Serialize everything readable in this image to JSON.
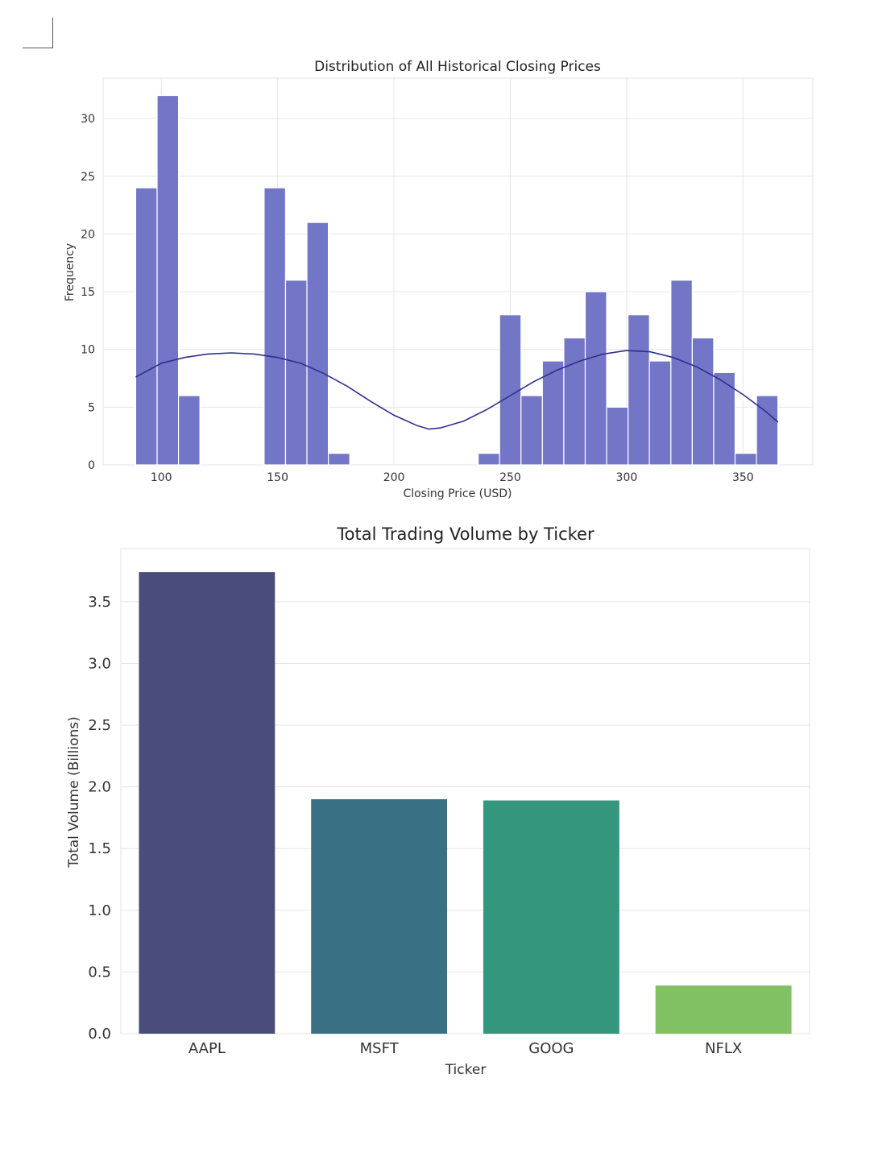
{
  "chart_data": [
    {
      "type": "bar",
      "subtype": "histogram",
      "title": "Distribution of All Historical Closing Prices",
      "xlabel": "Closing Price (USD)",
      "ylabel": "Frequency",
      "xlim": [
        75,
        380
      ],
      "ylim": [
        0,
        33.5
      ],
      "xticks": [
        "100",
        "150",
        "200",
        "250",
        "300",
        "350"
      ],
      "xtick_values": [
        100,
        150,
        200,
        250,
        300,
        350
      ],
      "yticks": [
        "0",
        "5",
        "10",
        "15",
        "20",
        "25",
        "30"
      ],
      "ytick_values": [
        0,
        5,
        10,
        15,
        20,
        25,
        30
      ],
      "grid": true,
      "bar_color": "#7375c6",
      "kde_color": "#2e2f8f",
      "bins": [
        {
          "x0": 89.0,
          "x1": 98.2,
          "count": 24
        },
        {
          "x0": 98.2,
          "x1": 107.4,
          "count": 32
        },
        {
          "x0": 107.4,
          "x1": 116.6,
          "count": 6
        },
        {
          "x0": 116.6,
          "x1": 125.8,
          "count": 0
        },
        {
          "x0": 125.8,
          "x1": 135.0,
          "count": 0
        },
        {
          "x0": 135.0,
          "x1": 144.2,
          "count": 0
        },
        {
          "x0": 144.2,
          "x1": 153.4,
          "count": 24
        },
        {
          "x0": 153.4,
          "x1": 162.6,
          "count": 16
        },
        {
          "x0": 162.6,
          "x1": 171.8,
          "count": 21
        },
        {
          "x0": 171.8,
          "x1": 181.0,
          "count": 1
        },
        {
          "x0": 181.0,
          "x1": 190.2,
          "count": 0
        },
        {
          "x0": 190.2,
          "x1": 199.4,
          "count": 0
        },
        {
          "x0": 199.4,
          "x1": 208.6,
          "count": 0
        },
        {
          "x0": 208.6,
          "x1": 217.8,
          "count": 0
        },
        {
          "x0": 217.8,
          "x1": 227.0,
          "count": 0
        },
        {
          "x0": 227.0,
          "x1": 236.2,
          "count": 0
        },
        {
          "x0": 236.2,
          "x1": 245.4,
          "count": 1
        },
        {
          "x0": 245.4,
          "x1": 254.6,
          "count": 13
        },
        {
          "x0": 254.6,
          "x1": 263.8,
          "count": 6
        },
        {
          "x0": 263.8,
          "x1": 273.0,
          "count": 9
        },
        {
          "x0": 273.0,
          "x1": 282.2,
          "count": 11
        },
        {
          "x0": 282.2,
          "x1": 291.4,
          "count": 15
        },
        {
          "x0": 291.4,
          "x1": 300.6,
          "count": 5
        },
        {
          "x0": 300.6,
          "x1": 309.8,
          "count": 13
        },
        {
          "x0": 309.8,
          "x1": 319.0,
          "count": 9
        },
        {
          "x0": 319.0,
          "x1": 328.2,
          "count": 16
        },
        {
          "x0": 328.2,
          "x1": 337.4,
          "count": 11
        },
        {
          "x0": 337.4,
          "x1": 346.6,
          "count": 8
        },
        {
          "x0": 346.6,
          "x1": 355.8,
          "count": 1
        },
        {
          "x0": 355.8,
          "x1": 365.0,
          "count": 6
        }
      ],
      "kde_curve": {
        "x": [
          89,
          100,
          110,
          120,
          130,
          140,
          150,
          160,
          170,
          180,
          190,
          200,
          210,
          215,
          220,
          230,
          240,
          250,
          260,
          270,
          280,
          290,
          300,
          310,
          320,
          330,
          340,
          350,
          360,
          365
        ],
        "y": [
          7.6,
          8.8,
          9.3,
          9.6,
          9.7,
          9.6,
          9.3,
          8.8,
          7.9,
          6.8,
          5.5,
          4.3,
          3.4,
          3.1,
          3.2,
          3.8,
          4.8,
          6.0,
          7.2,
          8.2,
          9.0,
          9.6,
          9.9,
          9.8,
          9.3,
          8.5,
          7.4,
          6.1,
          4.6,
          3.7
        ]
      }
    },
    {
      "type": "bar",
      "title": "Total Trading Volume by Ticker",
      "xlabel": "Ticker",
      "ylabel": "Total Volume (Billions)",
      "categories": [
        "AAPL",
        "MSFT",
        "GOOG",
        "NFLX"
      ],
      "values": [
        3.74,
        1.9,
        1.89,
        0.39
      ],
      "colors": [
        "#4a4c7b",
        "#397084",
        "#34967d",
        "#81c063"
      ],
      "ylim": [
        0,
        3.93
      ],
      "yticks": [
        "0.0",
        "0.5",
        "1.0",
        "1.5",
        "2.0",
        "2.5",
        "3.0",
        "3.5"
      ],
      "ytick_values": [
        0,
        0.5,
        1.0,
        1.5,
        2.0,
        2.5,
        3.0,
        3.5
      ],
      "grid": true
    }
  ]
}
